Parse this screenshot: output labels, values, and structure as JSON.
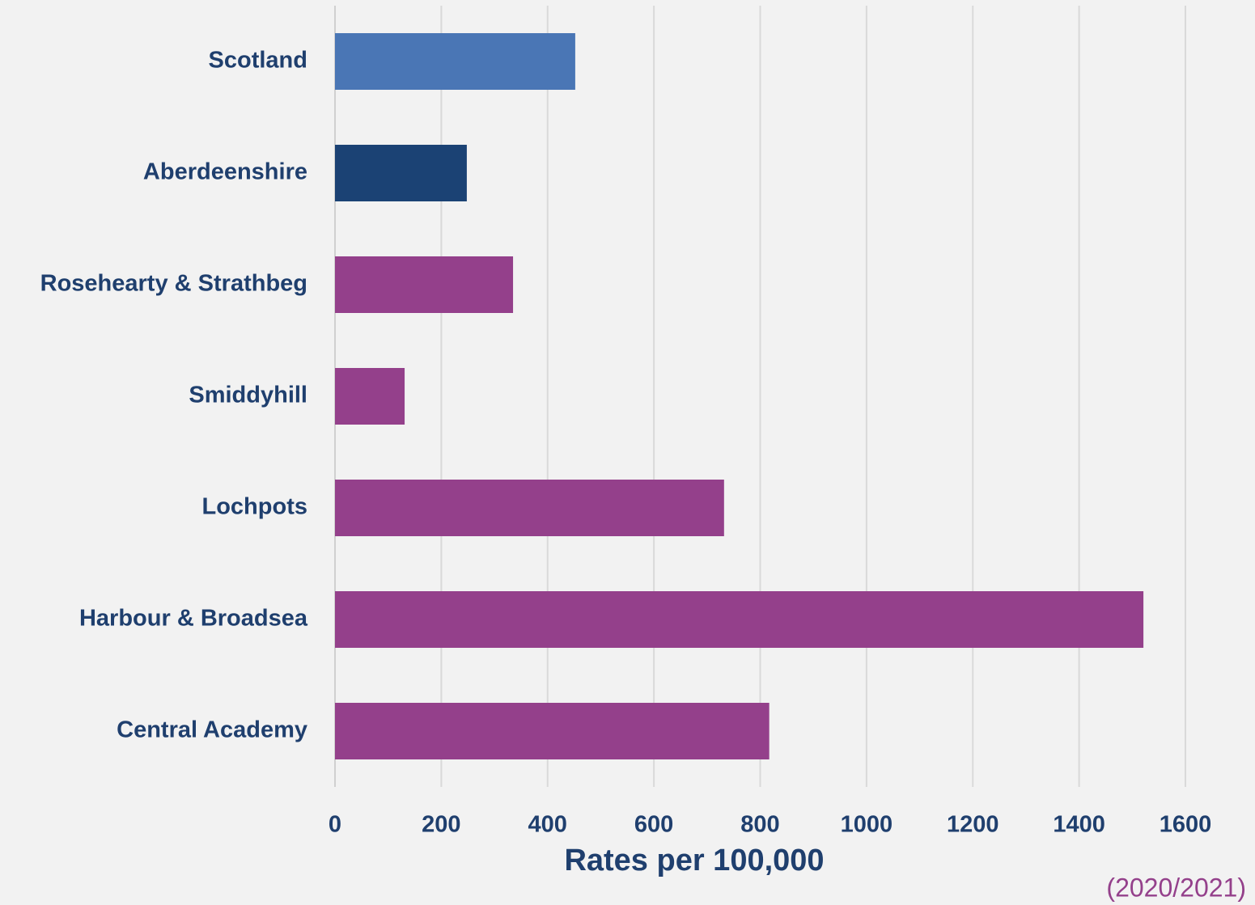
{
  "chart_data": {
    "type": "bar",
    "orientation": "horizontal",
    "categories": [
      "Scotland",
      "Aberdeenshire",
      "Rosehearty & Strathbeg",
      "Smiddyhill",
      "Lochpots",
      "Harbour & Broadsea",
      "Central Academy"
    ],
    "values": [
      452,
      248,
      335,
      131,
      732,
      1521,
      817
    ],
    "colors": [
      "#4a76b5",
      "#1b4274",
      "#94408b",
      "#94408b",
      "#94408b",
      "#94408b",
      "#94408b"
    ],
    "xlabel": "Rates per 100,000",
    "annotation": "(2020/2021)",
    "xlim": [
      0,
      1600
    ],
    "xticks": [
      0,
      200,
      400,
      600,
      800,
      1000,
      1200,
      1400,
      1600
    ],
    "grid": true
  }
}
